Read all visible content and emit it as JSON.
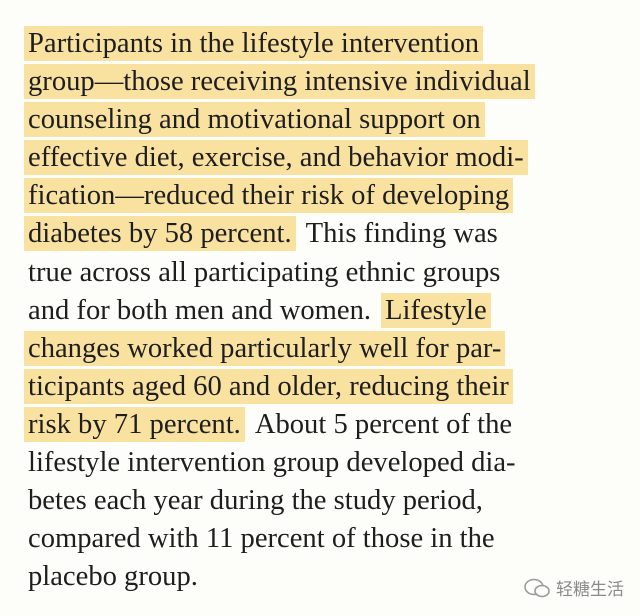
{
  "lines": [
    {
      "segments": [
        {
          "text": "Participants in the lifestyle intervention",
          "highlight": true
        }
      ]
    },
    {
      "segments": [
        {
          "text": "group—those receiving intensive individual",
          "highlight": true
        }
      ]
    },
    {
      "segments": [
        {
          "text": "counseling and motivational support on",
          "highlight": true
        }
      ]
    },
    {
      "segments": [
        {
          "text": "effective diet, exercise, and behavior modi-",
          "highlight": true
        }
      ]
    },
    {
      "segments": [
        {
          "text": "fication—reduced their risk of developing",
          "highlight": true
        }
      ]
    },
    {
      "segments": [
        {
          "text": "diabetes by 58 percent.",
          "highlight": true
        },
        {
          "text": "This finding was",
          "highlight": false
        }
      ]
    },
    {
      "segments": [
        {
          "text": "true across all participating ethnic groups",
          "highlight": false
        }
      ]
    },
    {
      "segments": [
        {
          "text": "and for both men and women.",
          "highlight": false
        },
        {
          "text": "Lifestyle",
          "highlight": true
        }
      ]
    },
    {
      "segments": [
        {
          "text": "changes worked particularly well for par-",
          "highlight": true
        }
      ]
    },
    {
      "segments": [
        {
          "text": "ticipants aged 60 and older, reducing their",
          "highlight": true
        }
      ]
    },
    {
      "segments": [
        {
          "text": "risk by 71 percent.",
          "highlight": true
        },
        {
          "text": "About 5 percent of the",
          "highlight": false
        }
      ]
    },
    {
      "segments": [
        {
          "text": "lifestyle intervention group developed dia-",
          "highlight": false
        }
      ]
    },
    {
      "segments": [
        {
          "text": "betes each year during the study period,",
          "highlight": false
        }
      ]
    },
    {
      "segments": [
        {
          "text": "compared with 11 percent of those in the",
          "highlight": false
        }
      ]
    },
    {
      "segments": [
        {
          "text": "placebo group.",
          "highlight": false
        }
      ]
    }
  ],
  "watermark": "轻糖生活"
}
